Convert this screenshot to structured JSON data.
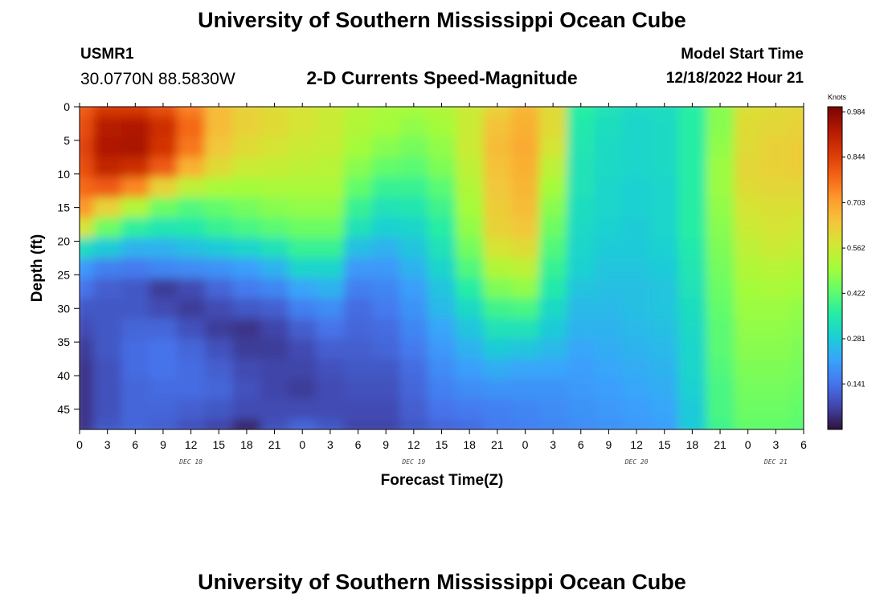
{
  "header": {
    "title": "University of Southern Mississippi Ocean Cube",
    "station_id": "USMR1",
    "station_coords": "30.0770N  88.5830W",
    "plot_title": "2-D Currents Speed-Magnitude",
    "model_start_label": "Model Start Time",
    "model_start_value": "12/18/2022 Hour 21"
  },
  "footer": {
    "title": "University of Southern Mississippi Ocean Cube"
  },
  "chart_data": {
    "type": "heatmap",
    "title": "2-D Currents Speed-Magnitude",
    "xlabel": "Forecast Time(Z)",
    "ylabel": "Depth (ft)",
    "x_tick_labels": [
      "0",
      "3",
      "6",
      "9",
      "12",
      "15",
      "18",
      "21",
      "0",
      "3",
      "6",
      "9",
      "12",
      "15",
      "18",
      "21",
      "0",
      "3",
      "6",
      "9",
      "12",
      "15",
      "18",
      "21",
      "0",
      "3",
      "6"
    ],
    "day_labels": [
      {
        "label": "DEC 18",
        "tick_index": 4
      },
      {
        "label": "DEC 19",
        "tick_index": 12
      },
      {
        "label": "DEC 20",
        "tick_index": 20
      },
      {
        "label": "DEC 21",
        "tick_index": 25
      }
    ],
    "y_ticks": [
      0,
      5,
      10,
      15,
      20,
      25,
      30,
      35,
      40,
      45
    ],
    "y_tick_labels": [
      "0",
      "5",
      "10",
      "15",
      "20",
      "25",
      "30",
      "35",
      "40",
      "45"
    ],
    "y_range": [
      0,
      48
    ],
    "x_range_hours": [
      0,
      78
    ],
    "colorbar": {
      "unit": "Knots",
      "tick_values": [
        0.984,
        0.844,
        0.703,
        0.562,
        0.422,
        0.281,
        0.141
      ],
      "tick_labels": [
        "0.984",
        "0.844",
        "0.703",
        "0.562",
        "0.422",
        "0.281",
        "0.141"
      ],
      "range": [
        0,
        1.0
      ],
      "colormap": [
        "#30123b",
        "#4145ab",
        "#4675ed",
        "#39a2fc",
        "#1bcfd4",
        "#24eca6",
        "#61fc6c",
        "#a4fc3b",
        "#d1e834",
        "#f3c63a",
        "#fe9b2d",
        "#f36315",
        "#d93806",
        "#b11901",
        "#7a0403"
      ]
    },
    "speed_grid": {
      "note": "speed in knots; rows are depth 0 to 48 ft, columns are forecast hours 0 to 78",
      "depths_ft": [
        0,
        3,
        6,
        9,
        12,
        15,
        18,
        21,
        24,
        27,
        30,
        33,
        36,
        39,
        42,
        45,
        48
      ],
      "hours": [
        0,
        3,
        6,
        9,
        12,
        15,
        18,
        21,
        24,
        27,
        30,
        33,
        36,
        39,
        42,
        45,
        48,
        51,
        54,
        57,
        60,
        63,
        66,
        69,
        72,
        75,
        78
      ],
      "values": [
        [
          0.8,
          0.86,
          0.86,
          0.82,
          0.75,
          0.66,
          0.62,
          0.6,
          0.58,
          0.56,
          0.53,
          0.51,
          0.5,
          0.52,
          0.56,
          0.62,
          0.67,
          0.6,
          0.36,
          0.33,
          0.31,
          0.32,
          0.36,
          0.47,
          0.59,
          0.6,
          0.61
        ],
        [
          0.82,
          0.92,
          0.93,
          0.88,
          0.78,
          0.66,
          0.62,
          0.6,
          0.58,
          0.56,
          0.52,
          0.5,
          0.48,
          0.5,
          0.56,
          0.65,
          0.68,
          0.6,
          0.35,
          0.32,
          0.3,
          0.31,
          0.36,
          0.47,
          0.6,
          0.61,
          0.62
        ],
        [
          0.84,
          0.93,
          0.94,
          0.87,
          0.76,
          0.64,
          0.6,
          0.58,
          0.56,
          0.55,
          0.5,
          0.47,
          0.45,
          0.48,
          0.56,
          0.66,
          0.69,
          0.58,
          0.34,
          0.31,
          0.3,
          0.31,
          0.36,
          0.48,
          0.6,
          0.62,
          0.63
        ],
        [
          0.82,
          0.9,
          0.88,
          0.8,
          0.68,
          0.6,
          0.56,
          0.55,
          0.54,
          0.53,
          0.47,
          0.43,
          0.42,
          0.46,
          0.54,
          0.65,
          0.68,
          0.54,
          0.33,
          0.31,
          0.3,
          0.31,
          0.36,
          0.49,
          0.61,
          0.62,
          0.63
        ],
        [
          0.78,
          0.8,
          0.74,
          0.62,
          0.54,
          0.51,
          0.5,
          0.51,
          0.51,
          0.51,
          0.43,
          0.38,
          0.38,
          0.42,
          0.52,
          0.64,
          0.67,
          0.5,
          0.33,
          0.3,
          0.29,
          0.3,
          0.36,
          0.49,
          0.6,
          0.61,
          0.61
        ],
        [
          0.72,
          0.62,
          0.52,
          0.44,
          0.41,
          0.43,
          0.45,
          0.47,
          0.48,
          0.48,
          0.38,
          0.33,
          0.34,
          0.39,
          0.5,
          0.63,
          0.66,
          0.47,
          0.32,
          0.3,
          0.29,
          0.3,
          0.36,
          0.48,
          0.58,
          0.59,
          0.59
        ],
        [
          0.58,
          0.44,
          0.37,
          0.34,
          0.35,
          0.38,
          0.4,
          0.42,
          0.44,
          0.44,
          0.33,
          0.29,
          0.3,
          0.36,
          0.48,
          0.62,
          0.64,
          0.44,
          0.31,
          0.29,
          0.28,
          0.3,
          0.36,
          0.47,
          0.56,
          0.58,
          0.57
        ],
        [
          0.32,
          0.28,
          0.24,
          0.24,
          0.26,
          0.28,
          0.3,
          0.33,
          0.38,
          0.38,
          0.26,
          0.24,
          0.27,
          0.33,
          0.45,
          0.58,
          0.6,
          0.41,
          0.3,
          0.28,
          0.28,
          0.29,
          0.35,
          0.46,
          0.54,
          0.56,
          0.55
        ],
        [
          0.2,
          0.16,
          0.15,
          0.17,
          0.18,
          0.19,
          0.21,
          0.24,
          0.3,
          0.3,
          0.2,
          0.2,
          0.24,
          0.3,
          0.41,
          0.52,
          0.54,
          0.38,
          0.29,
          0.27,
          0.27,
          0.28,
          0.34,
          0.45,
          0.52,
          0.53,
          0.52
        ],
        [
          0.14,
          0.11,
          0.1,
          0.06,
          0.08,
          0.12,
          0.15,
          0.17,
          0.22,
          0.24,
          0.16,
          0.17,
          0.21,
          0.27,
          0.36,
          0.46,
          0.48,
          0.35,
          0.27,
          0.26,
          0.26,
          0.27,
          0.33,
          0.44,
          0.5,
          0.51,
          0.5
        ],
        [
          0.1,
          0.1,
          0.1,
          0.08,
          0.06,
          0.08,
          0.1,
          0.11,
          0.16,
          0.18,
          0.13,
          0.15,
          0.19,
          0.25,
          0.31,
          0.39,
          0.4,
          0.31,
          0.25,
          0.25,
          0.26,
          0.27,
          0.32,
          0.43,
          0.49,
          0.49,
          0.48
        ],
        [
          0.08,
          0.1,
          0.12,
          0.12,
          0.09,
          0.06,
          0.05,
          0.07,
          0.11,
          0.14,
          0.12,
          0.13,
          0.17,
          0.22,
          0.27,
          0.33,
          0.33,
          0.28,
          0.24,
          0.24,
          0.25,
          0.26,
          0.31,
          0.42,
          0.48,
          0.48,
          0.47
        ],
        [
          0.06,
          0.1,
          0.13,
          0.14,
          0.12,
          0.09,
          0.06,
          0.06,
          0.08,
          0.11,
          0.11,
          0.12,
          0.15,
          0.2,
          0.24,
          0.28,
          0.27,
          0.25,
          0.22,
          0.23,
          0.24,
          0.25,
          0.3,
          0.42,
          0.47,
          0.47,
          0.46
        ],
        [
          0.05,
          0.09,
          0.13,
          0.14,
          0.13,
          0.11,
          0.08,
          0.07,
          0.07,
          0.09,
          0.1,
          0.1,
          0.13,
          0.18,
          0.21,
          0.23,
          0.22,
          0.22,
          0.21,
          0.22,
          0.23,
          0.24,
          0.3,
          0.41,
          0.46,
          0.46,
          0.45
        ],
        [
          0.05,
          0.09,
          0.12,
          0.13,
          0.13,
          0.12,
          0.09,
          0.07,
          0.06,
          0.08,
          0.09,
          0.09,
          0.12,
          0.16,
          0.18,
          0.19,
          0.19,
          0.19,
          0.2,
          0.21,
          0.22,
          0.23,
          0.29,
          0.4,
          0.45,
          0.45,
          0.44
        ],
        [
          0.05,
          0.09,
          0.12,
          0.12,
          0.11,
          0.1,
          0.08,
          0.08,
          0.08,
          0.08,
          0.08,
          0.08,
          0.11,
          0.14,
          0.15,
          0.16,
          0.17,
          0.18,
          0.19,
          0.2,
          0.21,
          0.22,
          0.28,
          0.4,
          0.44,
          0.44,
          0.43
        ],
        [
          0.05,
          0.1,
          0.12,
          0.11,
          0.09,
          0.07,
          0.03,
          0.09,
          0.12,
          0.1,
          0.07,
          0.07,
          0.1,
          0.12,
          0.13,
          0.15,
          0.16,
          0.17,
          0.18,
          0.19,
          0.2,
          0.21,
          0.28,
          0.39,
          0.43,
          0.43,
          0.42
        ]
      ]
    }
  }
}
